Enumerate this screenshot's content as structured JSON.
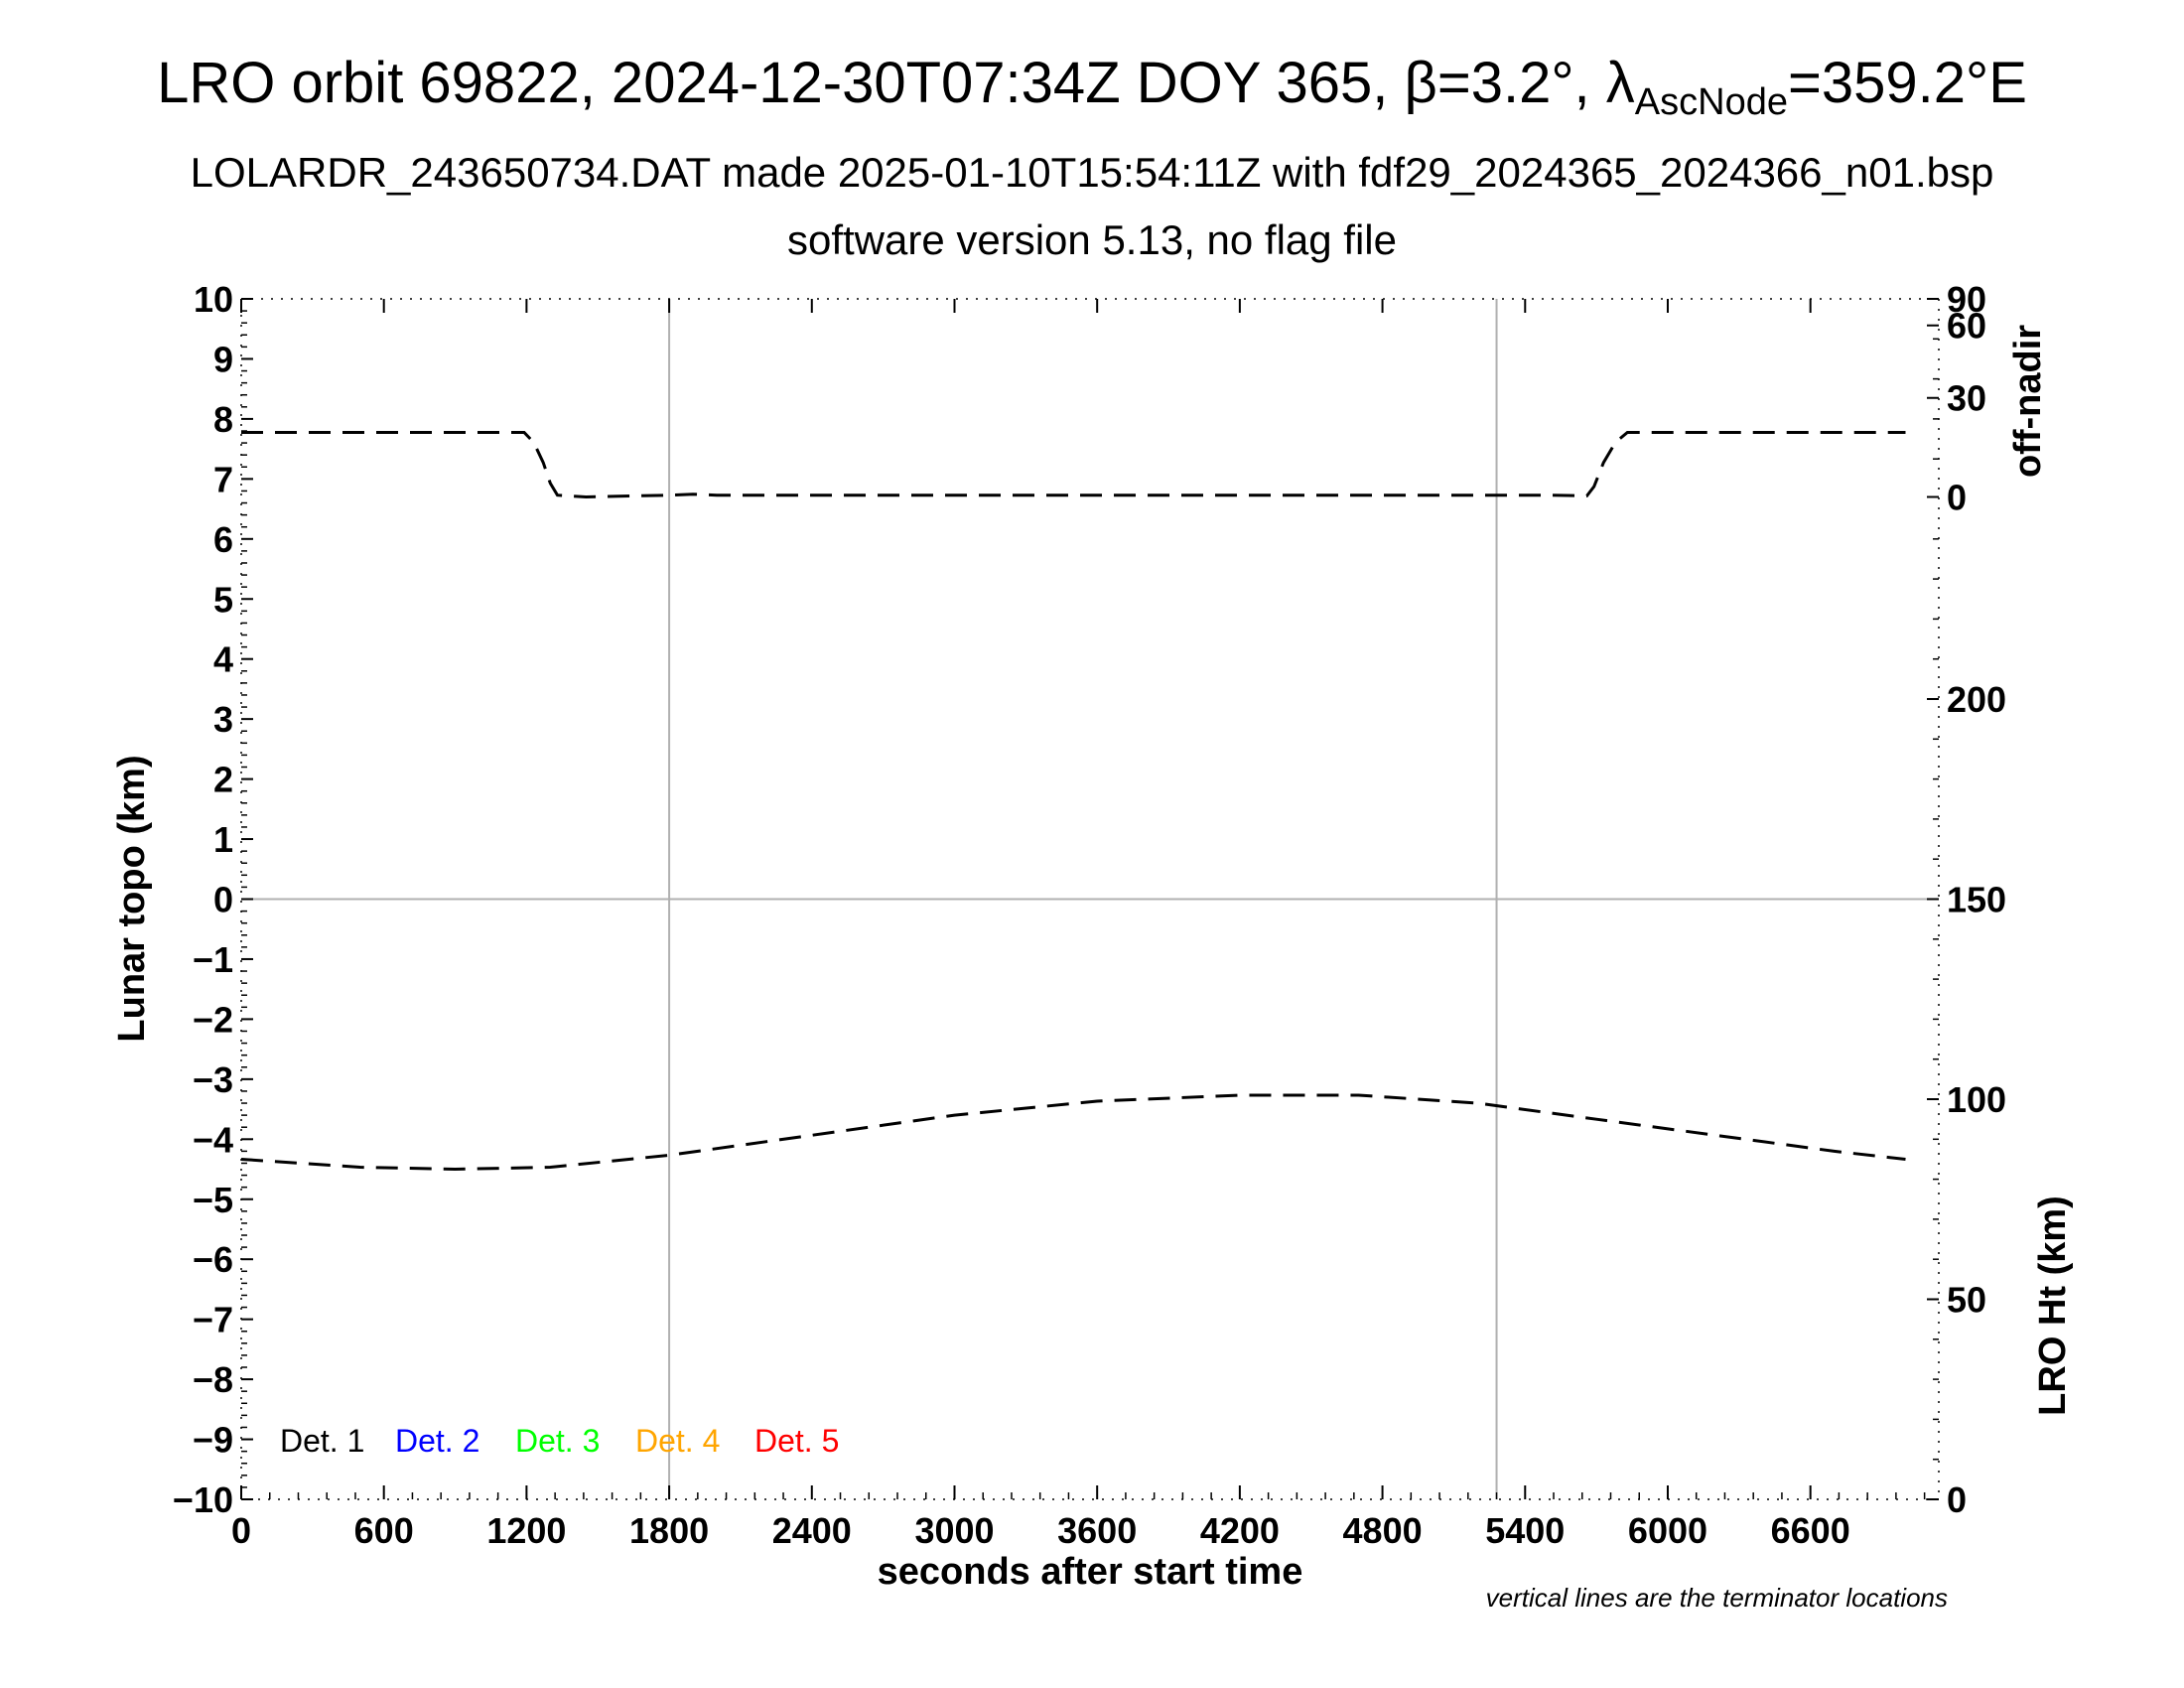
{
  "title": {
    "prefix": "LRO orbit 69822, 2024-12-30T07:34Z DOY 365, β=3.2°, λ",
    "sub": "AscNode",
    "suffix": "=359.2°E"
  },
  "subtitle1": "LOLARDR_243650734.DAT made 2025-01-10T15:54:11Z with fdf29_2024365_2024366_n01.bsp",
  "subtitle2": "software version 5.13, no flag file",
  "note": "vertical lines are the terminator locations",
  "colors": {
    "det1": "#000000",
    "det2": "#0000ff",
    "det3": "#00ff00",
    "det4": "#ffa500",
    "det5": "#ff0000",
    "grid": "#b0b0b0"
  },
  "chart_data": {
    "type": "line",
    "xlabel": "seconds after start time",
    "ylabel": "Lunar topo (km)",
    "y2label_top": "off-nadir",
    "y2label_bottom": "LRO Ht (km)",
    "xlim": [
      0,
      7140
    ],
    "ylim": [
      -10,
      10
    ],
    "x_ticks": [
      0,
      600,
      1200,
      1800,
      2400,
      3000,
      3600,
      4200,
      4800,
      5400,
      6000,
      6600
    ],
    "y_ticks": [
      10,
      9,
      8,
      7,
      6,
      5,
      4,
      3,
      2,
      1,
      0,
      -1,
      -2,
      -3,
      -4,
      -5,
      -6,
      -7,
      -8,
      -9,
      -10
    ],
    "y_tick_labels": [
      "10",
      "9",
      "8",
      "7",
      "6",
      "5",
      "4",
      "3",
      "2",
      "1",
      "0",
      "−1",
      "−2",
      "−3",
      "−4",
      "−5",
      "−6",
      "−7",
      "−8",
      "−9",
      "−10"
    ],
    "off_nadir_axis": {
      "range_y": [
        6.7,
        10
      ],
      "ticks": [
        0,
        30,
        60,
        90
      ],
      "mapping": "y = 6.7 + 3.3*sin(deg)"
    },
    "lro_ht_axis": {
      "ticks": [
        0,
        50,
        100,
        150,
        200
      ],
      "range_km": [
        0,
        300
      ]
    },
    "grid": {
      "vertical_lines_x": [
        1800,
        5280
      ],
      "horizontal_line_y": 0
    },
    "legend": [
      "Det. 1",
      "Det. 2",
      "Det. 3",
      "Det. 4",
      "Det. 5"
    ],
    "series": [
      {
        "name": "off-nadir",
        "axis": "off-nadir",
        "x": [
          0,
          1190,
          1230,
          1270,
          1300,
          1330,
          1450,
          1800,
          1900,
          2000,
          3000,
          4000,
          5000,
          5500,
          5660,
          5690,
          5730,
          5780,
          5830,
          7000
        ],
        "y": [
          19,
          19,
          16,
          10,
          4,
          0.5,
          0,
          0.5,
          0.8,
          0.5,
          0.5,
          0.5,
          0.5,
          0.5,
          0.3,
          3,
          10,
          16,
          19,
          19
        ]
      },
      {
        "name": "LRO Ht",
        "axis": "lro_ht",
        "x": [
          0,
          500,
          900,
          1300,
          1800,
          2400,
          3000,
          3600,
          4200,
          4700,
          5200,
          5700,
          6200,
          6700,
          7000
        ],
        "y": [
          85,
          83,
          82.5,
          83,
          86,
          91,
          96,
          99.5,
          101,
          101,
          99,
          95,
          91,
          87,
          85
        ]
      }
    ]
  }
}
